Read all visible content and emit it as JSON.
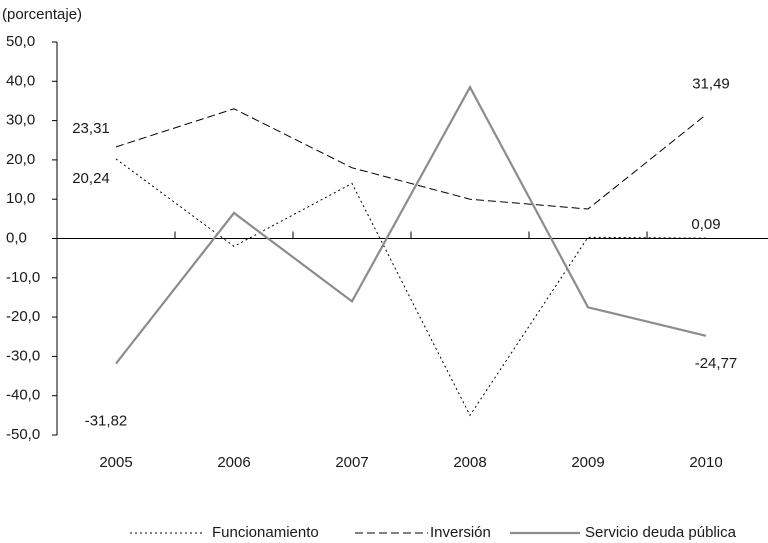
{
  "chart_data": {
    "type": "line",
    "ylabel": "(porcentaje)",
    "categories": [
      "2005",
      "2006",
      "2007",
      "2008",
      "2009",
      "2010"
    ],
    "series": [
      {
        "name": "Funcionamiento",
        "color": "#000000",
        "dash": "2,3",
        "width": 1,
        "values": [
          20.24,
          -2,
          14,
          -45,
          0.3,
          0.09
        ],
        "value_labels": [
          "20,24",
          null,
          null,
          null,
          null,
          "0,09"
        ]
      },
      {
        "name": "Inversión",
        "color": "#000000",
        "dash": "8,4",
        "width": 1,
        "values": [
          23.31,
          33,
          18,
          10,
          7.5,
          31.49
        ],
        "value_labels": [
          "23,31",
          null,
          null,
          null,
          null,
          "31,49"
        ]
      },
      {
        "name": "Servicio deuda pública",
        "color": "#8c8c8c",
        "dash": "none",
        "width": 2.2,
        "values": [
          -31.82,
          6.5,
          -16,
          38.5,
          -17.5,
          -24.77
        ],
        "value_labels": [
          "-31,82",
          null,
          null,
          null,
          null,
          "-24,77"
        ]
      }
    ],
    "ylim": [
      -50,
      50
    ],
    "yticks": [
      {
        "value": -50,
        "label": "-50,0"
      },
      {
        "value": -40,
        "label": "-40,0"
      },
      {
        "value": -30,
        "label": "-30,0"
      },
      {
        "value": -20,
        "label": "-20,0"
      },
      {
        "value": -10,
        "label": "-10,0"
      },
      {
        "value": 0,
        "label": "0,0"
      },
      {
        "value": 10,
        "label": "10,0"
      },
      {
        "value": 20,
        "label": "20,0"
      },
      {
        "value": 30,
        "label": "30,0"
      },
      {
        "value": 40,
        "label": "40,0"
      },
      {
        "value": 50,
        "label": "50,0"
      }
    ]
  }
}
